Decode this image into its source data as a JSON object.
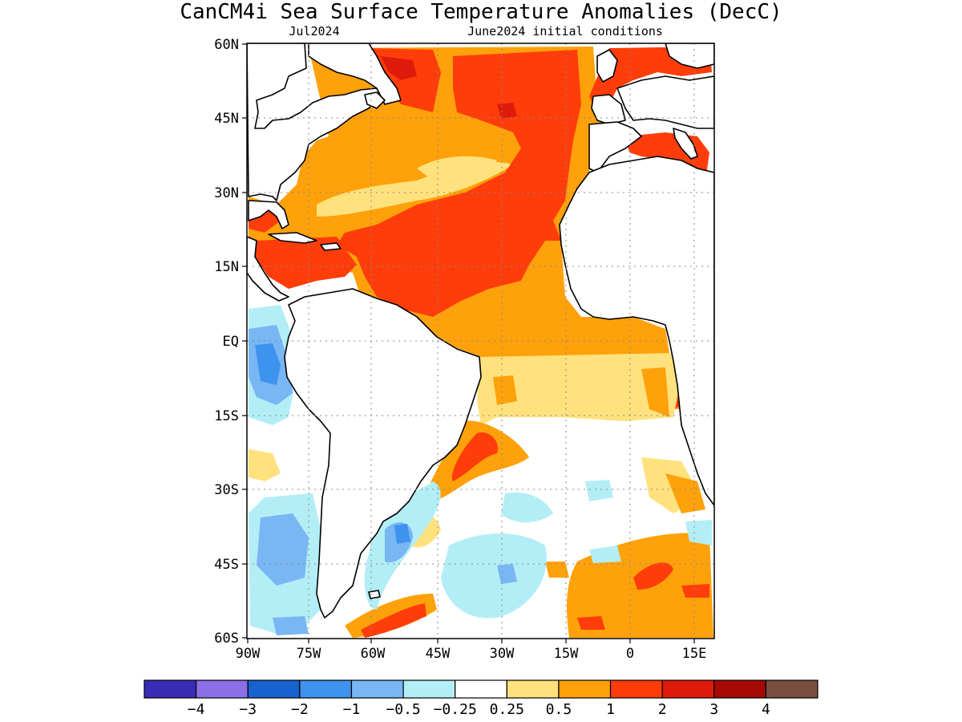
{
  "map": {
    "title": "CanCM4i Sea Surface Temperature Anomalies (DecC)",
    "subtitle_left": "Jul2024",
    "subtitle_right": "June2024 initial conditions",
    "lat_labels": [
      "60N",
      "45N",
      "30N",
      "15N",
      "EQ",
      "15S",
      "30S",
      "45S",
      "60S"
    ],
    "lon_labels": [
      "90W",
      "75W",
      "60W",
      "45W",
      "30W",
      "15W",
      "0",
      "15E"
    ],
    "colors": {
      "lt_m4": "#3a2bb5",
      "m4_m3": "#8a6fe6",
      "m3_m2": "#1862cf",
      "m2_m1": "#3d93ee",
      "m1_m05": "#78b6f4",
      "m05_m025": "#b3eef7",
      "neutral": "#ffffff",
      "p025_p05": "#ffe27d",
      "p05_p1": "#ffa10a",
      "p1_p2": "#ff3d0a",
      "p2_p3": "#e01a0a",
      "p3_p4": "#a50a05",
      "gt_p4": "#7a4e3e",
      "land": "#ffffff"
    }
  },
  "colorbar": {
    "colors": [
      "#3a2bb5",
      "#8a6fe6",
      "#1862cf",
      "#3d93ee",
      "#78b6f4",
      "#b3eef7",
      "#ffffff",
      "#ffe27d",
      "#ffa10a",
      "#ff3d0a",
      "#e01a0a",
      "#a50a05",
      "#7a4e3e"
    ],
    "labels": [
      "−4",
      "−3",
      "−2",
      "−1",
      "−0.5",
      "−0.25",
      "0.25",
      "0.5",
      "1",
      "2",
      "3",
      "4"
    ]
  }
}
